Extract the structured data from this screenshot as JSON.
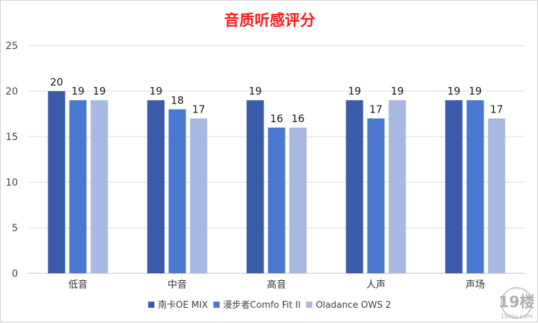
{
  "chart_data": {
    "type": "bar",
    "title": "音质听感评分",
    "xlabel": "",
    "ylabel": "",
    "ylim": [
      0,
      25
    ],
    "yticks": [
      0,
      5,
      10,
      15,
      20,
      25
    ],
    "grid": true,
    "legend_position": "bottom",
    "categories": [
      "低音",
      "中音",
      "高音",
      "人声",
      "声场"
    ],
    "series": [
      {
        "name": "南卡OE MIX",
        "color": "#3a5ba8",
        "values": [
          20,
          19,
          19,
          19,
          19
        ]
      },
      {
        "name": "漫步者Comfo Fit II",
        "color": "#4a78d0",
        "values": [
          19,
          18,
          16,
          17,
          19
        ]
      },
      {
        "name": "Oladance OWS 2",
        "color": "#a9b8e0",
        "values": [
          19,
          17,
          16,
          19,
          17
        ]
      }
    ]
  },
  "watermark": {
    "text": "19楼",
    "subtext": "19lou.com"
  }
}
